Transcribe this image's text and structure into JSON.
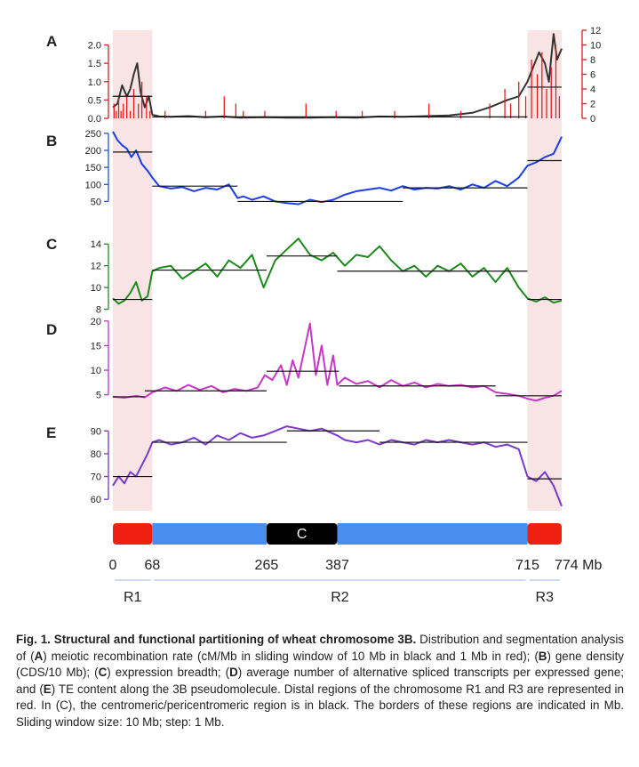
{
  "chart_data": {
    "type": "line",
    "x_unit": "Mb",
    "xlim": [
      0,
      774
    ],
    "panels": [
      {
        "label": "A",
        "ylim": [
          0,
          2.4
        ],
        "yticks": [
          "0.0",
          "0.5",
          "1.0",
          "1.5",
          "2.0"
        ],
        "ytick_values": [
          0,
          0.5,
          1.0,
          1.5,
          2.0
        ],
        "axis_color": "#e02020",
        "right_axis": {
          "ylim": [
            0,
            12
          ],
          "yticks": [
            "0",
            "2",
            "4",
            "6",
            "8",
            "10",
            "12"
          ],
          "ytick_values": [
            0,
            2,
            4,
            6,
            8,
            10,
            12
          ],
          "color": "#e02020"
        },
        "series": [
          {
            "color": "#333333",
            "x": [
              0,
              8,
              16,
              24,
              30,
              36,
              42,
              48,
              55,
              62,
              68,
              80,
              100,
              130,
              160,
              190,
              220,
              260,
              300,
              340,
              380,
              420,
              460,
              500,
              540,
              580,
              620,
              650,
              680,
              700,
              715,
              725,
              735,
              745,
              752,
              760,
              766,
              774
            ],
            "y": [
              0.3,
              0.4,
              0.9,
              0.6,
              0.8,
              1.2,
              1.5,
              0.7,
              0.3,
              0.6,
              0.1,
              0.05,
              0.04,
              0.06,
              0.03,
              0.05,
              0.02,
              0.03,
              0.02,
              0.02,
              0.03,
              0.02,
              0.05,
              0.04,
              0.06,
              0.08,
              0.15,
              0.3,
              0.5,
              0.6,
              1.0,
              1.4,
              1.8,
              1.5,
              1.0,
              2.3,
              1.6,
              1.9
            ]
          },
          {
            "color": "#e02020",
            "axis": "right",
            "x": [
              2,
              6,
              10,
              14,
              18,
              24,
              30,
              36,
              44,
              50,
              58,
              64,
              90,
              160,
              192,
              212,
              225,
              262,
              333,
              385,
              430,
              486,
              545,
              600,
              650,
              676,
              686,
              700,
              712,
              722,
              732,
              740,
              748,
              756,
              764,
              770
            ],
            "y": [
              2,
              1,
              3,
              1,
              2,
              3,
              1,
              4,
              2,
              5,
              3,
              1,
              1,
              1,
              3,
              2,
              1,
              1,
              2,
              1,
              1,
              1,
              2,
              1,
              2,
              4,
              2,
              5,
              3,
              8,
              6,
              9,
              4,
              7,
              10,
              3
            ]
          },
          {
            "color": "#111111",
            "role": "segment-means",
            "segments": [
              [
                0,
                68,
                0.6
              ],
              [
                68,
                715,
                0.04
              ],
              [
                715,
                774,
                0.85
              ]
            ]
          }
        ]
      },
      {
        "label": "B",
        "ylim": [
          25,
          260
        ],
        "yticks": [
          "50",
          "100",
          "150",
          "200",
          "250"
        ],
        "ytick_values": [
          50,
          100,
          150,
          200,
          250
        ],
        "axis_color": "#2050e0",
        "series": [
          {
            "color": "#1a3ee8",
            "x": [
              0,
              8,
              16,
              24,
              32,
              40,
              50,
              60,
              68,
              80,
              100,
              120,
              140,
              160,
              180,
              200,
              215,
              225,
              240,
              260,
              280,
              300,
              320,
              340,
              360,
              380,
              400,
              420,
              440,
              460,
              480,
              500,
              520,
              540,
              560,
              580,
              600,
              620,
              640,
              660,
              680,
              700,
              715,
              730,
              745,
              760,
              774
            ],
            "y": [
              255,
              230,
              215,
              205,
              180,
              200,
              160,
              140,
              120,
              95,
              88,
              92,
              80,
              90,
              85,
              100,
              60,
              65,
              55,
              65,
              50,
              45,
              42,
              55,
              48,
              55,
              70,
              80,
              85,
              90,
              82,
              95,
              85,
              90,
              88,
              95,
              85,
              100,
              90,
              110,
              95,
              120,
              155,
              165,
              180,
              190,
              240
            ]
          },
          {
            "color": "#111111",
            "role": "segment-means",
            "segments": [
              [
                0,
                68,
                195
              ],
              [
                68,
                215,
                95
              ],
              [
                215,
                500,
                50
              ],
              [
                500,
                715,
                90
              ],
              [
                715,
                774,
                170
              ]
            ]
          }
        ]
      },
      {
        "label": "C",
        "ylim": [
          7.8,
          15
        ],
        "yticks": [
          "8",
          "10",
          "12",
          "14"
        ],
        "ytick_values": [
          8,
          10,
          12,
          14
        ],
        "axis_color": "#1f8a1f",
        "series": [
          {
            "color": "#1a8a1a",
            "x": [
              0,
              10,
              20,
              30,
              40,
              50,
              60,
              68,
              80,
              100,
              120,
              140,
              160,
              180,
              200,
              220,
              240,
              260,
              280,
              300,
              320,
              340,
              360,
              380,
              400,
              420,
              440,
              460,
              480,
              500,
              520,
              540,
              560,
              580,
              600,
              620,
              640,
              660,
              680,
              700,
              715,
              730,
              745,
              760,
              774
            ],
            "y": [
              9.0,
              8.5,
              8.8,
              9.5,
              10.5,
              8.8,
              9.2,
              11.5,
              11.8,
              12.0,
              10.8,
              11.5,
              12.2,
              11.0,
              12.5,
              11.8,
              13.0,
              10.0,
              12.5,
              13.5,
              14.5,
              13.0,
              12.5,
              13.2,
              12.0,
              13.0,
              12.8,
              13.8,
              12.5,
              11.5,
              12.0,
              11.0,
              12.0,
              11.5,
              12.2,
              11.0,
              11.8,
              10.5,
              11.8,
              10.0,
              9.0,
              8.7,
              9.1,
              8.6,
              8.8
            ]
          },
          {
            "color": "#111111",
            "role": "segment-means",
            "segments": [
              [
                0,
                68,
                8.9
              ],
              [
                68,
                265,
                11.6
              ],
              [
                265,
                387,
                12.9
              ],
              [
                387,
                715,
                11.5
              ],
              [
                715,
                774,
                8.9
              ]
            ]
          }
        ]
      },
      {
        "label": "D",
        "ylim": [
          3.5,
          20.5
        ],
        "yticks": [
          "5",
          "10",
          "15",
          "20"
        ],
        "ytick_values": [
          5,
          10,
          15,
          20
        ],
        "axis_color": "#c030d0",
        "series": [
          {
            "color": "#c838c8",
            "x": [
              0,
              20,
              40,
              55,
              68,
              90,
              110,
              130,
              150,
              170,
              190,
              210,
              230,
              250,
              262,
              275,
              290,
              300,
              310,
              320,
              330,
              340,
              350,
              360,
              370,
              380,
              387,
              400,
              420,
              440,
              460,
              480,
              500,
              520,
              540,
              560,
              580,
              600,
              620,
              640,
              660,
              680,
              700,
              715,
              730,
              745,
              760,
              774
            ],
            "y": [
              4.6,
              4.4,
              4.8,
              4.5,
              5.5,
              6.5,
              5.8,
              7.0,
              6.0,
              6.8,
              5.5,
              6.2,
              5.8,
              6.5,
              9.0,
              8.0,
              11.0,
              7.0,
              12.0,
              8.5,
              14.0,
              19.5,
              9.0,
              15.0,
              7.0,
              13.0,
              7.0,
              8.5,
              7.2,
              7.8,
              6.5,
              8.0,
              6.8,
              7.5,
              6.5,
              7.2,
              6.8,
              7.0,
              6.5,
              6.8,
              5.5,
              5.2,
              4.8,
              4.2,
              3.8,
              4.4,
              4.8,
              5.8
            ]
          },
          {
            "color": "#111111",
            "role": "segment-means",
            "segments": [
              [
                0,
                55,
                4.6
              ],
              [
                55,
                265,
                5.8
              ],
              [
                265,
                390,
                9.8
              ],
              [
                390,
                660,
                6.8
              ],
              [
                660,
                774,
                4.8
              ]
            ]
          }
        ]
      },
      {
        "label": "E",
        "ylim": [
          55,
          94
        ],
        "yticks": [
          "60",
          "70",
          "80",
          "90"
        ],
        "ytick_values": [
          60,
          70,
          80,
          90
        ],
        "axis_color": "#7733cc",
        "series": [
          {
            "color": "#7a38cc",
            "x": [
              0,
              10,
              20,
              30,
              40,
              50,
              60,
              68,
              80,
              100,
              120,
              140,
              160,
              180,
              200,
              220,
              240,
              260,
              280,
              300,
              320,
              340,
              360,
              387,
              400,
              420,
              440,
              460,
              480,
              500,
              520,
              540,
              560,
              580,
              600,
              620,
              640,
              660,
              680,
              700,
              715,
              730,
              745,
              760,
              774
            ],
            "y": [
              66,
              70,
              67,
              72,
              70,
              75,
              80,
              85,
              86,
              84,
              85,
              87,
              84,
              88,
              86,
              89,
              87,
              88,
              90,
              92,
              91,
              90,
              91,
              88,
              86,
              85,
              86,
              84,
              86,
              85,
              84,
              86,
              85,
              86,
              85,
              84,
              85,
              83,
              84,
              82,
              70,
              68,
              72,
              66,
              57
            ]
          },
          {
            "color": "#111111",
            "role": "segment-means",
            "segments": [
              [
                0,
                68,
                70
              ],
              [
                68,
                300,
                85
              ],
              [
                300,
                460,
                90
              ],
              [
                460,
                715,
                85
              ],
              [
                715,
                774,
                69
              ]
            ]
          }
        ]
      }
    ],
    "regions_bar": [
      {
        "start": 0,
        "end": 68,
        "color": "#f02010"
      },
      {
        "start": 68,
        "end": 265,
        "color": "#4a8ff0"
      },
      {
        "start": 265,
        "end": 387,
        "color": "#000000",
        "label": "C"
      },
      {
        "start": 387,
        "end": 715,
        "color": "#4a8ff0"
      },
      {
        "start": 715,
        "end": 774,
        "color": "#f02010"
      }
    ],
    "boundary_ticks": [
      "0",
      "68",
      "265",
      "387",
      "715",
      "774 Mb"
    ],
    "boundary_values": [
      0,
      68,
      265,
      387,
      715,
      774
    ],
    "regions": [
      {
        "name": "R1",
        "start": 0,
        "end": 68
      },
      {
        "name": "R2",
        "start": 68,
        "end": 715
      },
      {
        "name": "R3",
        "start": 715,
        "end": 774
      }
    ],
    "shaded_regions": [
      [
        0,
        68
      ],
      [
        715,
        774
      ]
    ],
    "shade_color": "#f8e4e4"
  },
  "caption": {
    "title": "Fig. 1. Structural and functional partitioning of wheat chromosome 3B.",
    "parts": [
      " Distribution and segmentation analysis of (",
      "A",
      ") meiotic recombination rate (cM/Mb in sliding window of 10 Mb in black and 1 Mb in red); (",
      "B",
      ") gene density (CDS/10 Mb); (",
      "C",
      ") expression breadth; (",
      "D",
      ") average number of alternative spliced transcripts per expressed gene; and (",
      "E",
      ") TE content along the 3B pseudomolecule. Distal regions of the chromosome R1 and R3 are represented in red. In (C), the centromeric/pericentromeric region is in black. The borders of these regions are indicated in Mb. Sliding window size: 10 Mb; step: 1 Mb."
    ]
  }
}
